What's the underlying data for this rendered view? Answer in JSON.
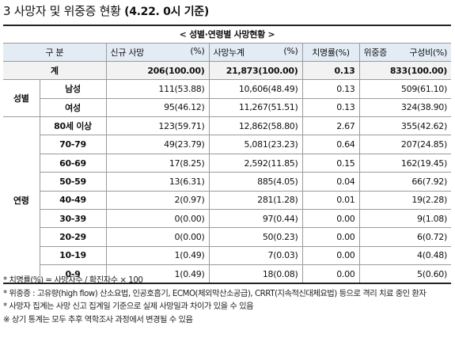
{
  "title": {
    "main": "3  사망자 및 위중증 현황",
    "date": "(4.22. 0시 기준)"
  },
  "table": {
    "caption": "< 성별·연령별 사망현황 >",
    "headers": {
      "category": "구 분",
      "new_deaths": "신규 사망",
      "new_deaths_unit": "(%)",
      "cum_deaths": "사망누계",
      "cum_deaths_unit": "(%)",
      "fatality": "치명률(%)",
      "critical": "위중증",
      "critical_ratio": "구성비(%)"
    },
    "total": {
      "label": "계",
      "new_deaths": "206(100.00)",
      "cum_deaths": "21,873(100.00)",
      "fatality": "0.13",
      "critical": "833(100.00)"
    },
    "sex_group": "성별",
    "sex_rows": [
      {
        "label": "남성",
        "new_deaths": "111(53.88)",
        "cum_deaths": "10,606(48.49)",
        "fatality": "0.13",
        "critical": "509(61.10)"
      },
      {
        "label": "여성",
        "new_deaths": "95(46.12)",
        "cum_deaths": "11,267(51.51)",
        "fatality": "0.13",
        "critical": "324(38.90)"
      }
    ],
    "age_group": "연령",
    "age_rows": [
      {
        "label": "80세 이상",
        "new_deaths": "123(59.71)",
        "cum_deaths": "12,862(58.80)",
        "fatality": "2.67",
        "critical": "355(42.62)"
      },
      {
        "label": "70-79",
        "new_deaths": "49(23.79)",
        "cum_deaths": "5,081(23.23)",
        "fatality": "0.64",
        "critical": "207(24.85)"
      },
      {
        "label": "60-69",
        "new_deaths": "17(8.25)",
        "cum_deaths": "2,592(11.85)",
        "fatality": "0.15",
        "critical": "162(19.45)"
      },
      {
        "label": "50-59",
        "new_deaths": "13(6.31)",
        "cum_deaths": "885(4.05)",
        "fatality": "0.04",
        "critical": "66(7.92)"
      },
      {
        "label": "40-49",
        "new_deaths": "2(0.97)",
        "cum_deaths": "281(1.28)",
        "fatality": "0.01",
        "critical": "19(2.28)"
      },
      {
        "label": "30-39",
        "new_deaths": "0(0.00)",
        "cum_deaths": "97(0.44)",
        "fatality": "0.00",
        "critical": "9(1.08)"
      },
      {
        "label": "20-29",
        "new_deaths": "0(0.00)",
        "cum_deaths": "50(0.23)",
        "fatality": "0.00",
        "critical": "6(0.72)"
      },
      {
        "label": "10-19",
        "new_deaths": "1(0.49)",
        "cum_deaths": "7(0.03)",
        "fatality": "0.00",
        "critical": "4(0.48)"
      },
      {
        "label": "0-9",
        "new_deaths": "1(0.49)",
        "cum_deaths": "18(0.08)",
        "fatality": "0.00",
        "critical": "5(0.60)"
      }
    ]
  },
  "notes": [
    "* 치명률(%) = 사망자수 / 확진자수 × 100",
    "* 위중증 : 고유량(high flow) 산소요법, 인공호흡기, ECMO(체외막산소공급), CRRT(지속적신대체요법) 등으로 격리 치료 중인 환자",
    "* 사망자 집계는 사망 신고 집계일 기준으로 실제 사망일과 차이가 있을 수 있음",
    "※ 상기 통계는 모두 추후 역학조사 과정에서 변경될 수 있음"
  ]
}
